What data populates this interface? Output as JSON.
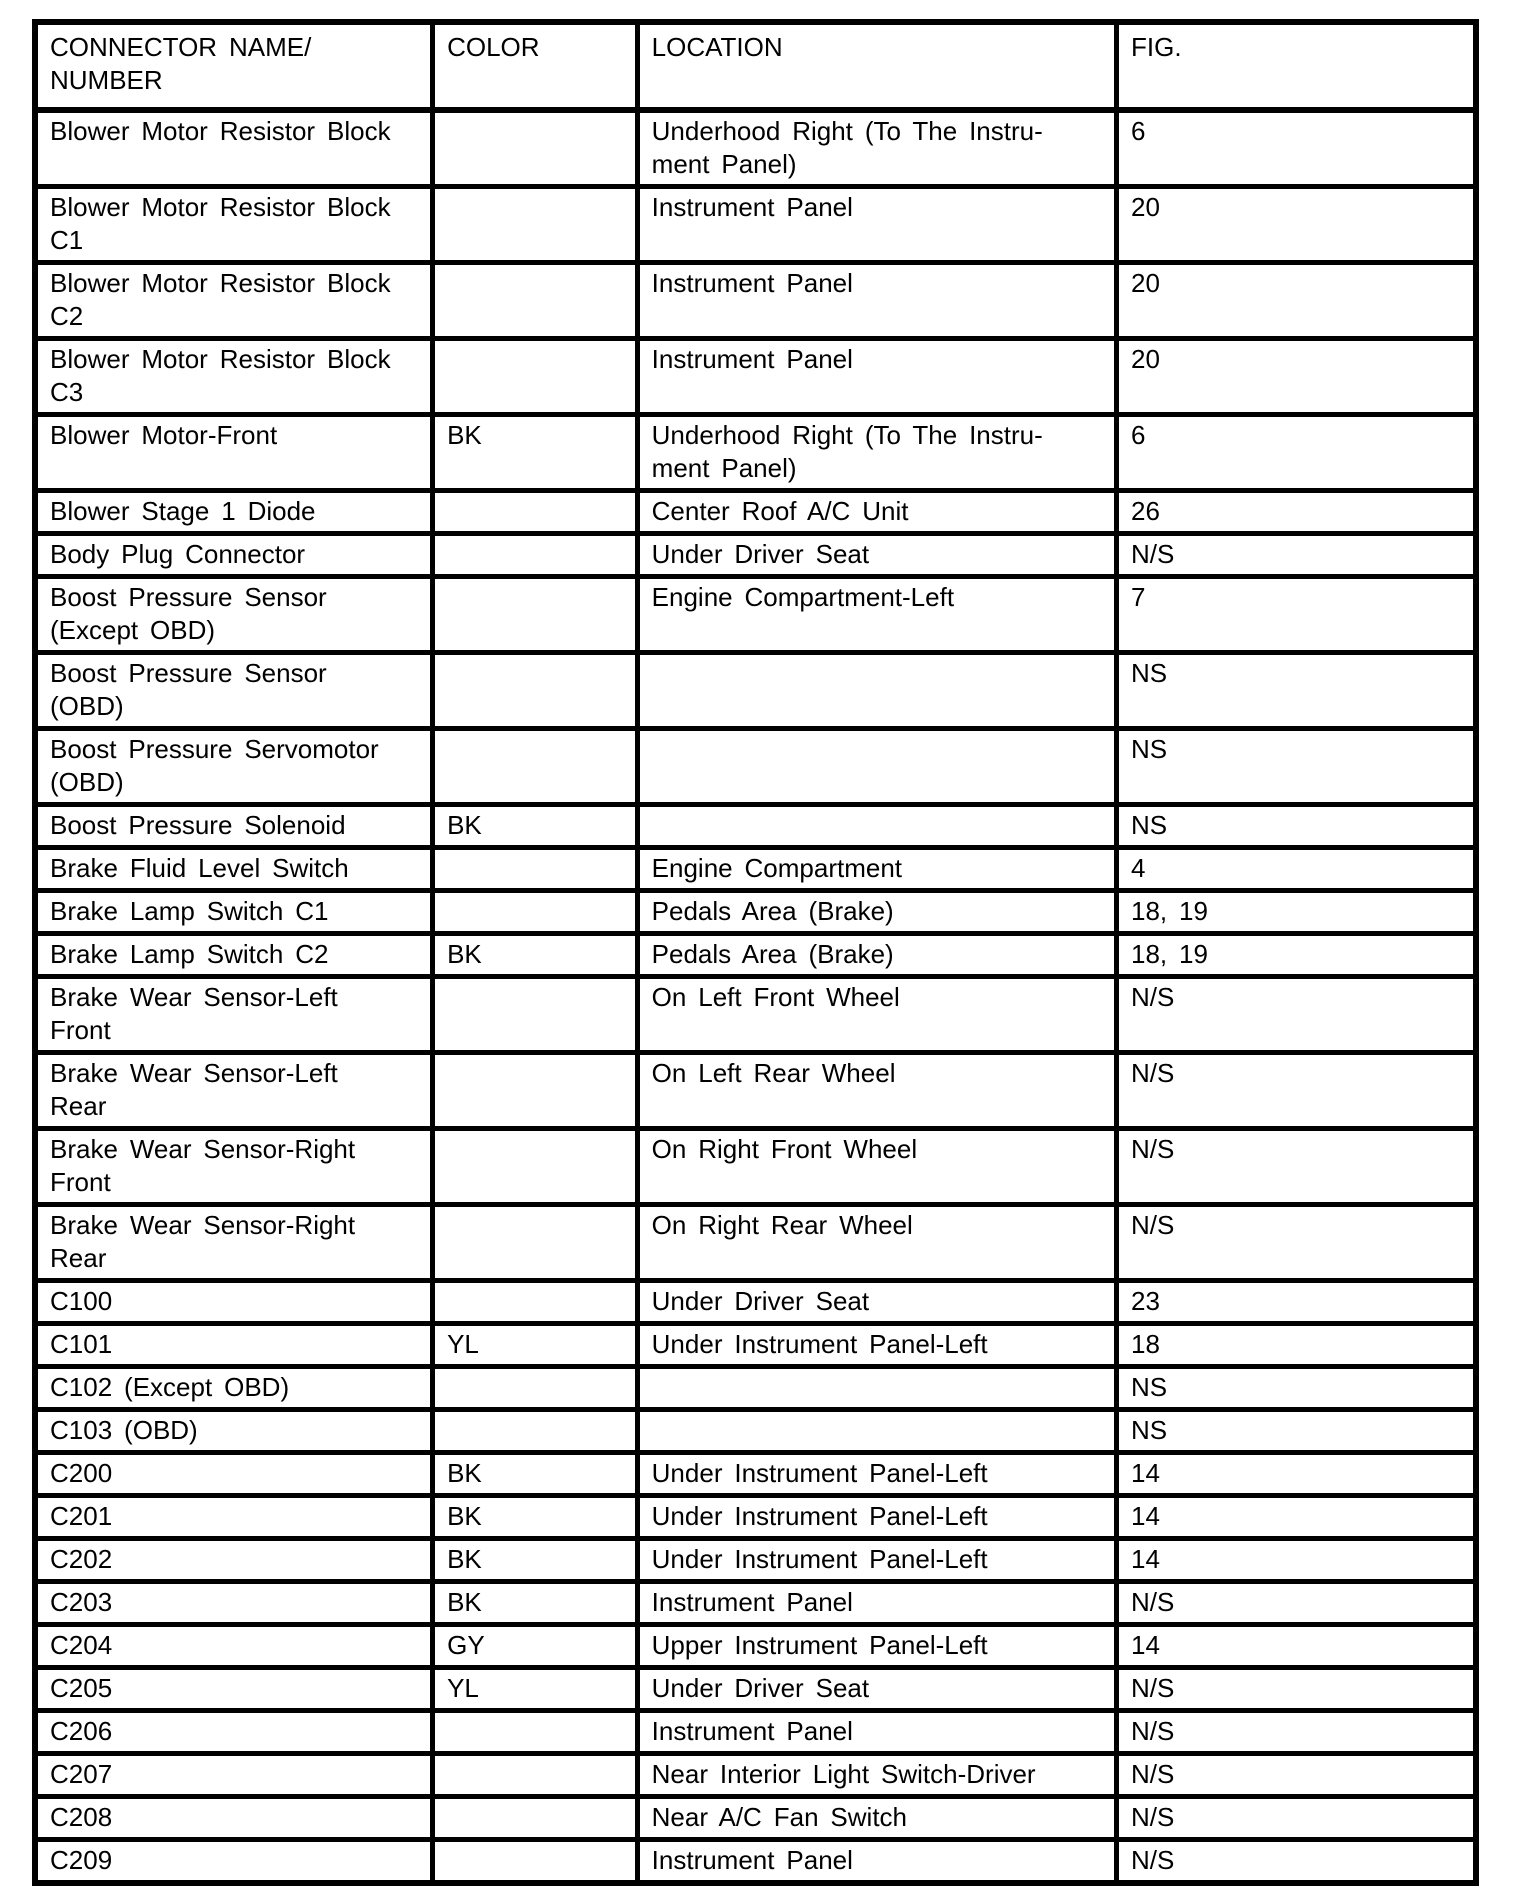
{
  "page": {
    "background_color": "#ffffff",
    "text_color": "#000000"
  },
  "table": {
    "headers": {
      "name": "CONNECTOR NAME/\nNUMBER",
      "color": "COLOR",
      "location": "LOCATION",
      "fig": "FIG."
    },
    "rows": [
      {
        "name": "Blower Motor Resistor Block",
        "color": "",
        "location": "Underhood Right (To The Instru-\nment Panel)",
        "fig": "6"
      },
      {
        "name": "Blower Motor Resistor Block\nC1",
        "color": "",
        "location": "Instrument Panel",
        "fig": "20"
      },
      {
        "name": "Blower Motor Resistor Block\nC2",
        "color": "",
        "location": "Instrument Panel",
        "fig": "20"
      },
      {
        "name": "Blower Motor Resistor Block\nC3",
        "color": "",
        "location": "Instrument Panel",
        "fig": "20"
      },
      {
        "name": "Blower Motor-Front",
        "color": "BK",
        "location": "Underhood Right (To The Instru-\nment Panel)",
        "fig": "6"
      },
      {
        "name": "Blower Stage 1 Diode",
        "color": "",
        "location": "Center Roof A/C Unit",
        "fig": "26"
      },
      {
        "name": "Body Plug Connector",
        "color": "",
        "location": "Under Driver Seat",
        "fig": "N/S"
      },
      {
        "name": "Boost Pressure Sensor\n(Except OBD)",
        "color": "",
        "location": "Engine Compartment-Left",
        "fig": "7"
      },
      {
        "name": "Boost Pressure Sensor\n(OBD)",
        "color": "",
        "location": "",
        "fig": "NS"
      },
      {
        "name": "Boost Pressure Servomotor\n(OBD)",
        "color": "",
        "location": "",
        "fig": "NS"
      },
      {
        "name": "Boost Pressure Solenoid",
        "color": "BK",
        "location": "",
        "fig": "NS"
      },
      {
        "name": "Brake Fluid Level Switch",
        "color": "",
        "location": "Engine Compartment",
        "fig": "4"
      },
      {
        "name": "Brake Lamp Switch C1",
        "color": "",
        "location": "Pedals Area (Brake)",
        "fig": "18, 19"
      },
      {
        "name": "Brake Lamp Switch C2",
        "color": "BK",
        "location": "Pedals Area (Brake)",
        "fig": "18, 19"
      },
      {
        "name": "Brake Wear Sensor-Left\nFront",
        "color": "",
        "location": "On Left Front Wheel",
        "fig": "N/S"
      },
      {
        "name": "Brake Wear Sensor-Left\nRear",
        "color": "",
        "location": "On Left Rear Wheel",
        "fig": "N/S"
      },
      {
        "name": "Brake Wear Sensor-Right\nFront",
        "color": "",
        "location": "On Right Front Wheel",
        "fig": "N/S"
      },
      {
        "name": "Brake Wear Sensor-Right\nRear",
        "color": "",
        "location": "On Right Rear Wheel",
        "fig": "N/S"
      },
      {
        "name": "C100",
        "color": "",
        "location": "Under Driver Seat",
        "fig": "23"
      },
      {
        "name": "C101",
        "color": "YL",
        "location": "Under Instrument Panel-Left",
        "fig": "18"
      },
      {
        "name": "C102 (Except OBD)",
        "color": "",
        "location": "",
        "fig": "NS"
      },
      {
        "name": "C103 (OBD)",
        "color": "",
        "location": "",
        "fig": "NS"
      },
      {
        "name": "C200",
        "color": "BK",
        "location": "Under Instrument Panel-Left",
        "fig": "14"
      },
      {
        "name": "C201",
        "color": "BK",
        "location": "Under Instrument Panel-Left",
        "fig": "14"
      },
      {
        "name": "C202",
        "color": "BK",
        "location": "Under Instrument Panel-Left",
        "fig": "14"
      },
      {
        "name": "C203",
        "color": "BK",
        "location": "Instrument Panel",
        "fig": "N/S"
      },
      {
        "name": "C204",
        "color": "GY",
        "location": "Upper Instrument Panel-Left",
        "fig": "14"
      },
      {
        "name": "C205",
        "color": "YL",
        "location": "Under Driver Seat",
        "fig": "N/S"
      },
      {
        "name": "C206",
        "color": "",
        "location": "Instrument Panel",
        "fig": "N/S"
      },
      {
        "name": "C207",
        "color": "",
        "location": "Near Interior Light Switch-Driver",
        "fig": "N/S"
      },
      {
        "name": "C208",
        "color": "",
        "location": "Near A/C Fan Switch",
        "fig": "N/S"
      },
      {
        "name": "C209",
        "color": "",
        "location": "Instrument Panel",
        "fig": "N/S"
      }
    ]
  }
}
